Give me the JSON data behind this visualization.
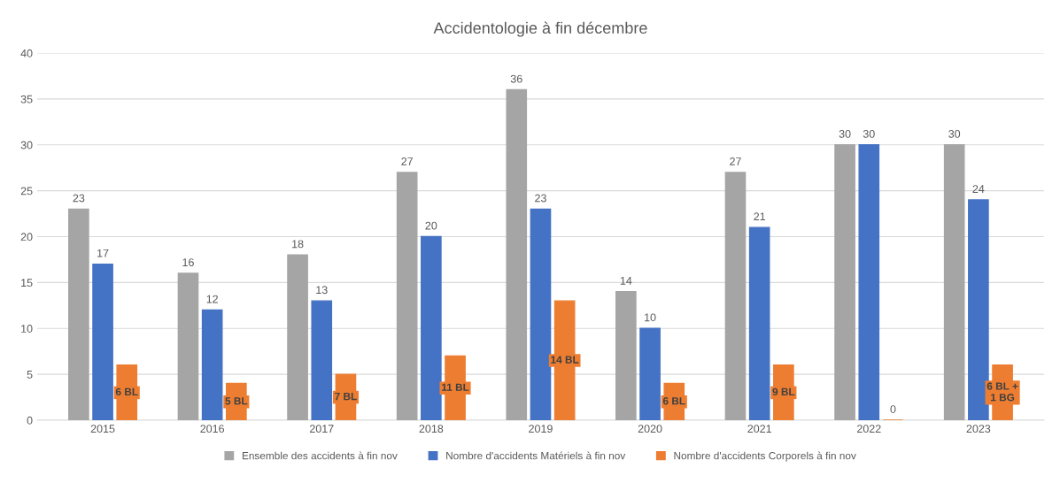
{
  "chart_data": {
    "type": "bar",
    "title": "Accidentologie à fin décembre",
    "categories": [
      "2015",
      "2016",
      "2017",
      "2018",
      "2019",
      "2020",
      "2021",
      "2022",
      "2023"
    ],
    "series": [
      {
        "name": "Ensemble des accidents à fin nov",
        "color": "#a5a5a5",
        "values": [
          23,
          16,
          18,
          27,
          36,
          14,
          27,
          30,
          30
        ],
        "value_labels": [
          "23",
          "16",
          "18",
          "27",
          "36",
          "14",
          "27",
          "30",
          "30"
        ]
      },
      {
        "name": "Nombre d'accidents Matériels à fin nov",
        "color": "#4472c4",
        "values": [
          17,
          12,
          13,
          20,
          23,
          10,
          21,
          30,
          24
        ],
        "value_labels": [
          "17",
          "12",
          "13",
          "20",
          "23",
          "10",
          "21",
          "30",
          "24"
        ]
      },
      {
        "name": "Nombre d'accidents Corporels à fin nov",
        "color": "#ed7d31",
        "values": [
          6,
          4,
          5,
          7,
          13,
          4,
          6,
          0,
          6
        ],
        "value_labels": [
          null,
          null,
          null,
          null,
          null,
          null,
          null,
          "0",
          null
        ]
      }
    ],
    "annotations": [
      "6 BL",
      "5 BL",
      "7 BL",
      "11 BL",
      "14 BL",
      "6 BL",
      "9 BL",
      "6 BL +\n1 BG"
    ],
    "ylim": [
      0,
      40
    ],
    "yticks": [
      0,
      5,
      10,
      15,
      20,
      25,
      30,
      35,
      40
    ],
    "grid": "y",
    "legend": "bottom"
  }
}
